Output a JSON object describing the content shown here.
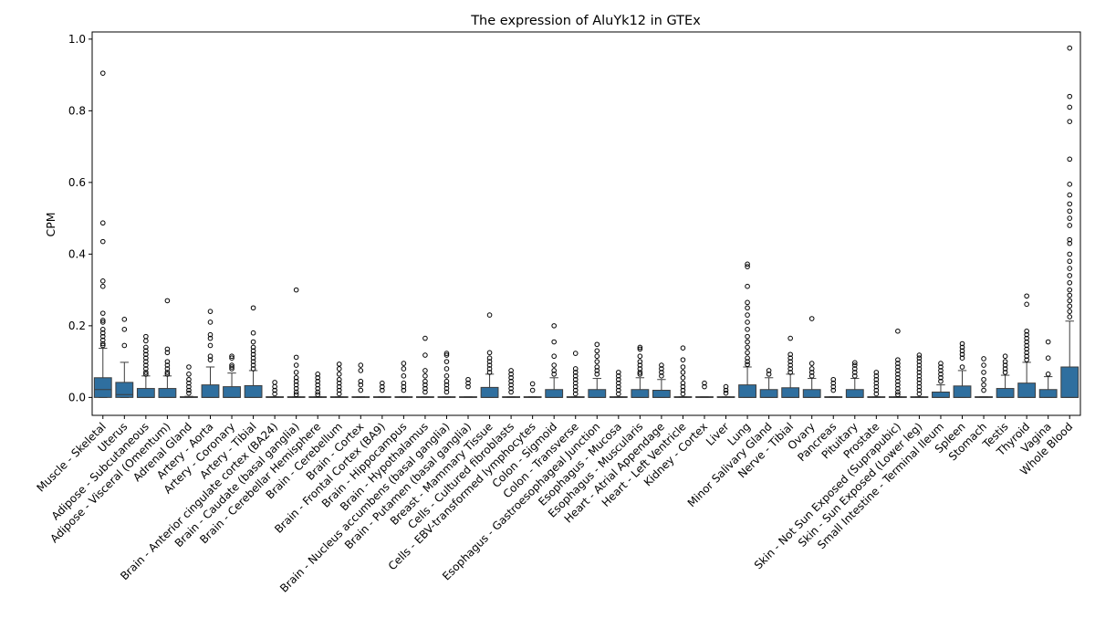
{
  "chart_data": {
    "type": "box",
    "title": "The expression of AluYk12 in GTEx",
    "xlabel": "",
    "ylabel": "CPM",
    "ylim": [
      -0.05,
      1.02
    ],
    "yticks": [
      "0.0",
      "0.2",
      "0.4",
      "0.6",
      "0.8",
      "1.0"
    ],
    "grid": false,
    "box_color": "#2f6f9f",
    "categories": [
      "Muscle - Skeletal",
      "Uterus",
      "Adipose - Subcutaneous",
      "Adipose - Visceral (Omentum)",
      "Adrenal Gland",
      "Artery - Aorta",
      "Artery - Coronary",
      "Artery - Tibial",
      "Brain - Anterior cingulate cortex (BA24)",
      "Brain - Caudate (basal ganglia)",
      "Brain - Cerebellar Hemisphere",
      "Brain - Cerebellum",
      "Brain - Cortex",
      "Brain - Frontal Cortex (BA9)",
      "Brain - Hippocampus",
      "Brain - Hypothalamus",
      "Brain - Nucleus accumbens (basal ganglia)",
      "Brain - Putamen (basal ganglia)",
      "Breast - Mammary Tissue",
      "Cells - Cultured fibroblasts",
      "Cells - EBV-transformed lymphocytes",
      "Colon - Sigmoid",
      "Colon - Transverse",
      "Esophagus - Gastroesophageal Junction",
      "Esophagus - Mucosa",
      "Esophagus - Muscularis",
      "Heart - Atrial Appendage",
      "Heart - Left Ventricle",
      "Kidney - Cortex",
      "Liver",
      "Lung",
      "Minor Salivary Gland",
      "Nerve - Tibial",
      "Ovary",
      "Pancreas",
      "Pituitary",
      "Prostate",
      "Skin - Not Sun Exposed (Suprapubic)",
      "Skin - Sun Exposed (Lower leg)",
      "Small Intestine - Terminal Ileum",
      "Spleen",
      "Stomach",
      "Testis",
      "Thyroid",
      "Vagina",
      "Whole Blood"
    ],
    "boxes": [
      {
        "q1": 0.0,
        "median": 0.022,
        "q3": 0.055,
        "whisker_low": 0.0,
        "whisker_high": 0.137,
        "outliers": [
          0.905,
          0.487,
          0.435,
          0.325,
          0.31,
          0.235,
          0.215,
          0.21,
          0.19,
          0.18,
          0.17,
          0.16,
          0.15,
          0.145
        ]
      },
      {
        "q1": 0.0,
        "median": 0.008,
        "q3": 0.042,
        "whisker_low": 0.0,
        "whisker_high": 0.098,
        "outliers": [
          0.218,
          0.19,
          0.145
        ]
      },
      {
        "q1": 0.0,
        "median": 0.0,
        "q3": 0.025,
        "whisker_low": 0.0,
        "whisker_high": 0.06,
        "outliers": [
          0.17,
          0.158,
          0.14,
          0.13,
          0.12,
          0.11,
          0.1,
          0.09,
          0.08,
          0.07,
          0.065
        ]
      },
      {
        "q1": 0.0,
        "median": 0.0,
        "q3": 0.025,
        "whisker_low": 0.0,
        "whisker_high": 0.06,
        "outliers": [
          0.27,
          0.135,
          0.125,
          0.1,
          0.09,
          0.08,
          0.07,
          0.065
        ]
      },
      {
        "q1": 0.0,
        "median": 0.0,
        "q3": 0.002,
        "whisker_low": 0.0,
        "whisker_high": 0.003,
        "outliers": [
          0.085,
          0.065,
          0.05,
          0.04,
          0.03,
          0.02,
          0.012
        ]
      },
      {
        "q1": 0.0,
        "median": 0.0,
        "q3": 0.035,
        "whisker_low": 0.0,
        "whisker_high": 0.085,
        "outliers": [
          0.24,
          0.21,
          0.175,
          0.165,
          0.145,
          0.115,
          0.105
        ]
      },
      {
        "q1": 0.0,
        "median": 0.0,
        "q3": 0.03,
        "whisker_low": 0.0,
        "whisker_high": 0.068,
        "outliers": [
          0.115,
          0.11,
          0.09,
          0.085,
          0.08
        ]
      },
      {
        "q1": 0.0,
        "median": 0.0,
        "q3": 0.033,
        "whisker_low": 0.0,
        "whisker_high": 0.075,
        "outliers": [
          0.25,
          0.18,
          0.155,
          0.14,
          0.13,
          0.12,
          0.11,
          0.1,
          0.09,
          0.08
        ]
      },
      {
        "q1": 0.0,
        "median": 0.0,
        "q3": 0.001,
        "whisker_low": 0.0,
        "whisker_high": 0.002,
        "outliers": [
          0.042,
          0.03,
          0.02,
          0.01
        ]
      },
      {
        "q1": 0.0,
        "median": 0.0,
        "q3": 0.001,
        "whisker_low": 0.0,
        "whisker_high": 0.002,
        "outliers": [
          0.3,
          0.112,
          0.09,
          0.07,
          0.055,
          0.045,
          0.035,
          0.025,
          0.015,
          0.008
        ]
      },
      {
        "q1": 0.0,
        "median": 0.0,
        "q3": 0.001,
        "whisker_low": 0.0,
        "whisker_high": 0.002,
        "outliers": [
          0.065,
          0.055,
          0.045,
          0.035,
          0.025,
          0.015,
          0.008
        ]
      },
      {
        "q1": 0.0,
        "median": 0.0,
        "q3": 0.001,
        "whisker_low": 0.0,
        "whisker_high": 0.002,
        "outliers": [
          0.093,
          0.08,
          0.065,
          0.05,
          0.04,
          0.03,
          0.02,
          0.01
        ]
      },
      {
        "q1": 0.0,
        "median": 0.0,
        "q3": 0.001,
        "whisker_low": 0.0,
        "whisker_high": 0.002,
        "outliers": [
          0.09,
          0.075,
          0.045,
          0.035,
          0.02
        ]
      },
      {
        "q1": 0.0,
        "median": 0.0,
        "q3": 0.001,
        "whisker_low": 0.0,
        "whisker_high": 0.002,
        "outliers": [
          0.04,
          0.03,
          0.02
        ]
      },
      {
        "q1": 0.0,
        "median": 0.0,
        "q3": 0.001,
        "whisker_low": 0.0,
        "whisker_high": 0.002,
        "outliers": [
          0.095,
          0.08,
          0.06,
          0.04,
          0.03,
          0.02
        ]
      },
      {
        "q1": 0.0,
        "median": 0.0,
        "q3": 0.001,
        "whisker_low": 0.0,
        "whisker_high": 0.002,
        "outliers": [
          0.165,
          0.118,
          0.075,
          0.06,
          0.045,
          0.035,
          0.025,
          0.015
        ]
      },
      {
        "q1": 0.0,
        "median": 0.0,
        "q3": 0.001,
        "whisker_low": 0.0,
        "whisker_high": 0.002,
        "outliers": [
          0.123,
          0.118,
          0.1,
          0.08,
          0.06,
          0.045,
          0.035,
          0.025,
          0.015
        ]
      },
      {
        "q1": 0.0,
        "median": 0.0,
        "q3": 0.001,
        "whisker_low": 0.0,
        "whisker_high": 0.002,
        "outliers": [
          0.05,
          0.04,
          0.03
        ]
      },
      {
        "q1": 0.0,
        "median": 0.0,
        "q3": 0.028,
        "whisker_low": 0.0,
        "whisker_high": 0.065,
        "outliers": [
          0.23,
          0.125,
          0.11,
          0.1,
          0.09,
          0.08,
          0.07
        ]
      },
      {
        "q1": 0.0,
        "median": 0.0,
        "q3": 0.001,
        "whisker_low": 0.0,
        "whisker_high": 0.002,
        "outliers": [
          0.075,
          0.065,
          0.055,
          0.045,
          0.035,
          0.025,
          0.015
        ]
      },
      {
        "q1": 0.0,
        "median": 0.0,
        "q3": 0.001,
        "whisker_low": 0.0,
        "whisker_high": 0.002,
        "outliers": [
          0.038,
          0.02
        ]
      },
      {
        "q1": 0.0,
        "median": 0.0,
        "q3": 0.022,
        "whisker_low": 0.0,
        "whisker_high": 0.055,
        "outliers": [
          0.2,
          0.155,
          0.115,
          0.09,
          0.075,
          0.065
        ]
      },
      {
        "q1": 0.0,
        "median": 0.0,
        "q3": 0.001,
        "whisker_low": 0.0,
        "whisker_high": 0.002,
        "outliers": [
          0.123,
          0.08,
          0.07,
          0.06,
          0.05,
          0.04,
          0.03,
          0.02,
          0.01
        ]
      },
      {
        "q1": 0.0,
        "median": 0.0,
        "q3": 0.022,
        "whisker_low": 0.0,
        "whisker_high": 0.053,
        "outliers": [
          0.148,
          0.13,
          0.115,
          0.1,
          0.085,
          0.075,
          0.065
        ]
      },
      {
        "q1": 0.0,
        "median": 0.0,
        "q3": 0.001,
        "whisker_low": 0.0,
        "whisker_high": 0.002,
        "outliers": [
          0.07,
          0.06,
          0.05,
          0.04,
          0.03,
          0.02,
          0.01
        ]
      },
      {
        "q1": 0.0,
        "median": 0.0,
        "q3": 0.022,
        "whisker_low": 0.0,
        "whisker_high": 0.055,
        "outliers": [
          0.14,
          0.135,
          0.115,
          0.1,
          0.09,
          0.08,
          0.07,
          0.065
        ]
      },
      {
        "q1": 0.0,
        "median": 0.0,
        "q3": 0.02,
        "whisker_low": 0.0,
        "whisker_high": 0.05,
        "outliers": [
          0.09,
          0.08,
          0.07,
          0.06
        ]
      },
      {
        "q1": 0.0,
        "median": 0.0,
        "q3": 0.001,
        "whisker_low": 0.0,
        "whisker_high": 0.002,
        "outliers": [
          0.138,
          0.105,
          0.085,
          0.07,
          0.055,
          0.04,
          0.03,
          0.02,
          0.01
        ]
      },
      {
        "q1": 0.0,
        "median": 0.0,
        "q3": 0.001,
        "whisker_low": 0.0,
        "whisker_high": 0.002,
        "outliers": [
          0.04,
          0.03
        ]
      },
      {
        "q1": 0.0,
        "median": 0.0,
        "q3": 0.001,
        "whisker_low": 0.0,
        "whisker_high": 0.002,
        "outliers": [
          0.03,
          0.02,
          0.012
        ]
      },
      {
        "q1": 0.0,
        "median": 0.0,
        "q3": 0.035,
        "whisker_low": 0.0,
        "whisker_high": 0.085,
        "outliers": [
          0.372,
          0.365,
          0.31,
          0.265,
          0.25,
          0.23,
          0.21,
          0.19,
          0.17,
          0.155,
          0.14,
          0.125,
          0.11,
          0.1,
          0.092
        ]
      },
      {
        "q1": 0.0,
        "median": 0.0,
        "q3": 0.022,
        "whisker_low": 0.0,
        "whisker_high": 0.055,
        "outliers": [
          0.075,
          0.065
        ]
      },
      {
        "q1": 0.0,
        "median": 0.0,
        "q3": 0.027,
        "whisker_low": 0.0,
        "whisker_high": 0.065,
        "outliers": [
          0.165,
          0.12,
          0.11,
          0.1,
          0.09,
          0.08,
          0.07
        ]
      },
      {
        "q1": 0.0,
        "median": 0.0,
        "q3": 0.022,
        "whisker_low": 0.0,
        "whisker_high": 0.053,
        "outliers": [
          0.22,
          0.095,
          0.08,
          0.07,
          0.06
        ]
      },
      {
        "q1": 0.0,
        "median": 0.0,
        "q3": 0.001,
        "whisker_low": 0.0,
        "whisker_high": 0.002,
        "outliers": [
          0.05,
          0.04,
          0.03,
          0.02
        ]
      },
      {
        "q1": 0.0,
        "median": 0.0,
        "q3": 0.022,
        "whisker_low": 0.0,
        "whisker_high": 0.053,
        "outliers": [
          0.097,
          0.09,
          0.08,
          0.07,
          0.06
        ]
      },
      {
        "q1": 0.0,
        "median": 0.0,
        "q3": 0.001,
        "whisker_low": 0.0,
        "whisker_high": 0.002,
        "outliers": [
          0.07,
          0.06,
          0.05,
          0.04,
          0.03,
          0.02,
          0.01
        ]
      },
      {
        "q1": 0.0,
        "median": 0.0,
        "q3": 0.001,
        "whisker_low": 0.0,
        "whisker_high": 0.002,
        "outliers": [
          0.185,
          0.105,
          0.095,
          0.085,
          0.075,
          0.065,
          0.055,
          0.045,
          0.035,
          0.025,
          0.015,
          0.008
        ]
      },
      {
        "q1": 0.0,
        "median": 0.0,
        "q3": 0.001,
        "whisker_low": 0.0,
        "whisker_high": 0.002,
        "outliers": [
          0.118,
          0.11,
          0.1,
          0.09,
          0.08,
          0.07,
          0.06,
          0.05,
          0.04,
          0.03,
          0.02,
          0.01
        ]
      },
      {
        "q1": 0.0,
        "median": 0.0,
        "q3": 0.015,
        "whisker_low": 0.0,
        "whisker_high": 0.035,
        "outliers": [
          0.095,
          0.085,
          0.075,
          0.065,
          0.055,
          0.045
        ]
      },
      {
        "q1": 0.0,
        "median": 0.0,
        "q3": 0.032,
        "whisker_low": 0.0,
        "whisker_high": 0.075,
        "outliers": [
          0.15,
          0.14,
          0.13,
          0.12,
          0.11,
          0.085
        ]
      },
      {
        "q1": 0.0,
        "median": 0.0,
        "q3": 0.001,
        "whisker_low": 0.0,
        "whisker_high": 0.002,
        "outliers": [
          0.108,
          0.09,
          0.07,
          0.05,
          0.035,
          0.02
        ]
      },
      {
        "q1": 0.0,
        "median": 0.0,
        "q3": 0.025,
        "whisker_low": 0.0,
        "whisker_high": 0.062,
        "outliers": [
          0.115,
          0.1,
          0.09,
          0.08,
          0.07
        ]
      },
      {
        "q1": 0.0,
        "median": 0.0,
        "q3": 0.04,
        "whisker_low": 0.0,
        "whisker_high": 0.098,
        "outliers": [
          0.283,
          0.26,
          0.185,
          0.175,
          0.165,
          0.155,
          0.145,
          0.135,
          0.125,
          0.115,
          0.105
        ]
      },
      {
        "q1": 0.0,
        "median": 0.0,
        "q3": 0.022,
        "whisker_low": 0.0,
        "whisker_high": 0.058,
        "outliers": [
          0.155,
          0.11,
          0.065
        ]
      },
      {
        "q1": 0.0,
        "median": 0.0,
        "q3": 0.085,
        "whisker_low": 0.0,
        "whisker_high": 0.213,
        "outliers": [
          0.975,
          0.84,
          0.81,
          0.77,
          0.665,
          0.595,
          0.565,
          0.54,
          0.52,
          0.5,
          0.48,
          0.44,
          0.43,
          0.4,
          0.38,
          0.36,
          0.34,
          0.32,
          0.3,
          0.285,
          0.27,
          0.255,
          0.24,
          0.225
        ]
      }
    ]
  }
}
